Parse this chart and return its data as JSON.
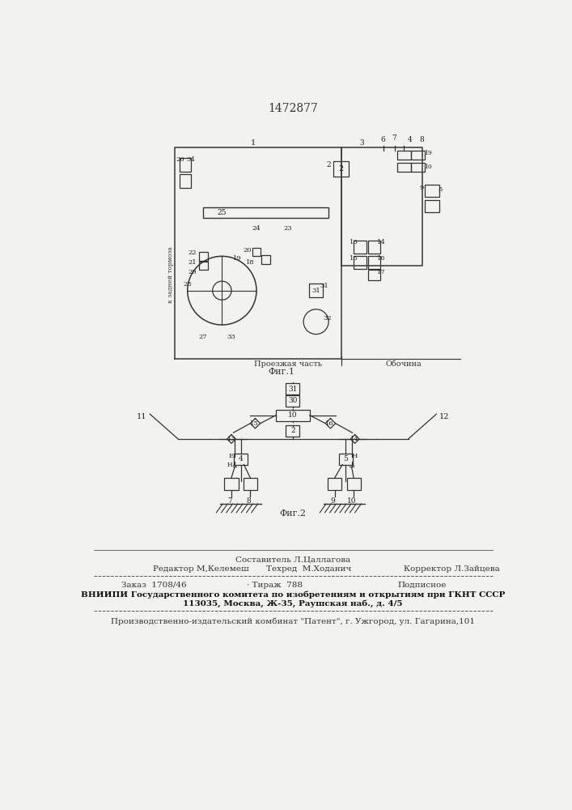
{
  "patent_number": "1472877",
  "bg_color": "#f2f2ee",
  "fig1_caption": "Фиг.1",
  "fig2_caption": "Фиг.2",
  "road_label_left": "Проезжая часть",
  "road_label_right": "Обочина",
  "footer_line0_col2": "Составитель Л.Цаллагова",
  "footer_line1_col1": "Редактор М,Келемеш",
  "footer_line1_col2": "Техред  М.Ходанич",
  "footer_line1_col3": "Корректор Л.Зайцева",
  "footer_line2_col1": "Заказ  1708/46",
  "footer_line2_col2": "· Тираж  788",
  "footer_line2_col3": "Подписное",
  "footer_bold1": "ВНИИПИ Государственного комитета по изобретениям и открытиям при ГКНТ СССР",
  "footer_bold2": "113035, Москва, Ж-35, Раушская наб., д. 4/5",
  "footer_last": "Производственно-издательский комбинат \"Патент\", г. Ужгород, ул. Гагарина,101"
}
